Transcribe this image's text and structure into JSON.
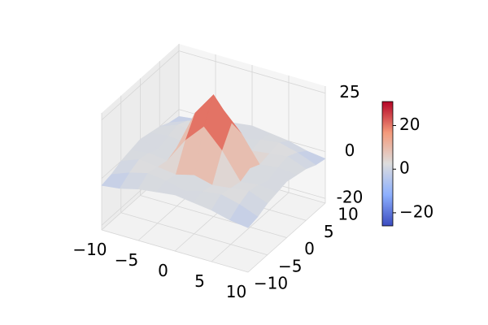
{
  "chart_data": {
    "type": "surface",
    "x": [
      -10,
      -7.5,
      -5,
      -2.5,
      0,
      2.5,
      5,
      7.5,
      10
    ],
    "y": [
      -10,
      -7.5,
      -5,
      -2.5,
      0,
      2.5,
      5,
      7.5,
      10
    ],
    "z": [
      [
        -3,
        -2,
        0,
        1,
        2,
        1,
        0,
        -2,
        -3
      ],
      [
        -2,
        1,
        3,
        2,
        0,
        2,
        3,
        1,
        -2
      ],
      [
        0,
        3,
        2,
        1,
        3,
        1,
        2,
        3,
        0
      ],
      [
        1,
        2,
        1,
        12,
        20,
        12,
        1,
        2,
        1
      ],
      [
        2,
        0,
        3,
        20,
        30,
        20,
        3,
        0,
        2
      ],
      [
        1,
        2,
        1,
        12,
        20,
        12,
        1,
        2,
        1
      ],
      [
        0,
        3,
        2,
        1,
        3,
        1,
        2,
        3,
        0
      ],
      [
        -2,
        1,
        3,
        2,
        0,
        2,
        3,
        1,
        -2
      ],
      [
        -3,
        -2,
        0,
        1,
        2,
        1,
        0,
        -2,
        -3
      ]
    ],
    "xlim": [
      -10,
      10
    ],
    "ylim": [
      -10,
      10
    ],
    "zlim": [
      -22,
      28
    ],
    "xticks": [
      {
        "value": -10,
        "label": "−10"
      },
      {
        "value": -5,
        "label": "−5"
      },
      0,
      5,
      10
    ],
    "yticks": [
      {
        "value": -10,
        "label": "−10"
      },
      {
        "value": -5,
        "label": "−5"
      },
      0,
      5,
      10
    ],
    "zticks": [
      {
        "value": -20,
        "label": "-20"
      },
      0,
      25
    ],
    "colormap": "coolwarm",
    "clim": [
      -26,
      31
    ],
    "colorbar_ticks": [
      {
        "value": -20,
        "label": "−20"
      },
      0,
      20
    ]
  }
}
